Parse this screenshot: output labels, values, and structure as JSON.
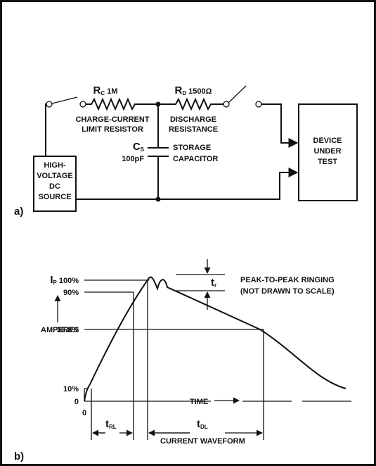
{
  "circuit": {
    "panel_label": "a)",
    "source": [
      "HIGH-",
      "VOLTAGE",
      "DC",
      "SOURCE"
    ],
    "charge_resistor": {
      "symbol": "R",
      "subscript": "C",
      "value": "1M",
      "description": [
        "CHARGE-CURRENT",
        "LIMIT RESISTOR"
      ]
    },
    "discharge_resistor": {
      "symbol": "R",
      "subscript": "D",
      "value": "1500Ω",
      "description": [
        "DISCHARGE",
        "RESISTANCE"
      ]
    },
    "capacitor": {
      "symbol": "C",
      "subscript": "S",
      "value": "100pF",
      "description": [
        "STORAGE",
        "CAPACITOR"
      ]
    },
    "device": [
      "DEVICE",
      "UNDER",
      "TEST"
    ]
  },
  "waveform": {
    "panel_label": "b)",
    "peak": {
      "symbol": "I",
      "subscript": "P",
      "label": "100%"
    },
    "levels": [
      "90%",
      "36.8%",
      "10%",
      "0"
    ],
    "y_axis_label": "AMPERES",
    "origin_label": "0",
    "x_axis_label": "TIME",
    "rise_time": {
      "symbol": "t",
      "subscript": "RL"
    },
    "decay_time": {
      "symbol": "t",
      "subscript": "DL"
    },
    "ringing_time": {
      "symbol": "t",
      "subscript": "r"
    },
    "ringing_note": [
      "PEAK-TO-PEAK RINGING",
      "(NOT DRAWN TO SCALE)"
    ],
    "caption": "CURRENT WAVEFORM"
  }
}
